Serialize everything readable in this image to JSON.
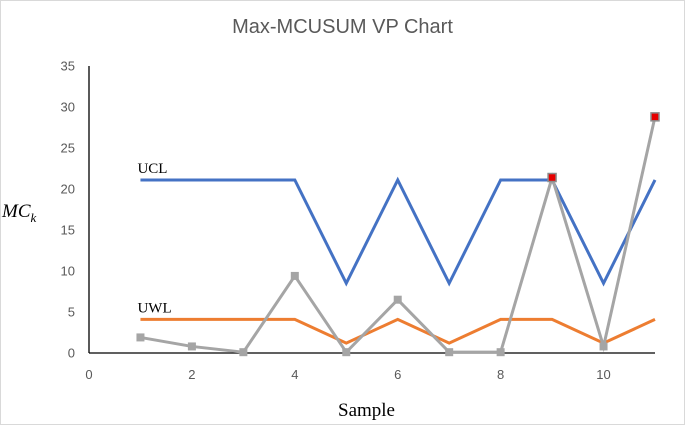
{
  "chart_data": {
    "type": "line",
    "title": "Max-MCUSUM VP Chart",
    "xlabel": "Sample",
    "ylabel": {
      "base": "MC",
      "subscript": "k"
    },
    "xlim": [
      0,
      11
    ],
    "ylim": [
      0,
      35
    ],
    "xticks": [
      0,
      2,
      4,
      6,
      8,
      10
    ],
    "yticks": [
      0,
      5,
      10,
      15,
      20,
      25,
      30,
      35
    ],
    "grid": false,
    "x": [
      1,
      2,
      3,
      4,
      5,
      6,
      7,
      8,
      9,
      10,
      11
    ],
    "series": [
      {
        "name": "UCL",
        "color": "#4472c4",
        "marker": "none",
        "values": [
          21.1,
          21.1,
          21.1,
          21.1,
          8.5,
          21.1,
          8.5,
          21.1,
          21.1,
          8.5,
          21.1
        ]
      },
      {
        "name": "UWL",
        "color": "#ed7d31",
        "marker": "none",
        "values": [
          4.1,
          4.1,
          4.1,
          4.1,
          1.2,
          4.1,
          1.2,
          4.1,
          4.1,
          1.2,
          4.1
        ]
      },
      {
        "color": "#a5a5a5",
        "marker": "square",
        "values": [
          1.9,
          0.8,
          0.1,
          9.4,
          0.1,
          6.5,
          0.1,
          0.1,
          21.4,
          0.8,
          28.8
        ]
      }
    ],
    "out_of_control_points": {
      "color": "#e60000",
      "x": [
        9,
        11
      ]
    }
  }
}
